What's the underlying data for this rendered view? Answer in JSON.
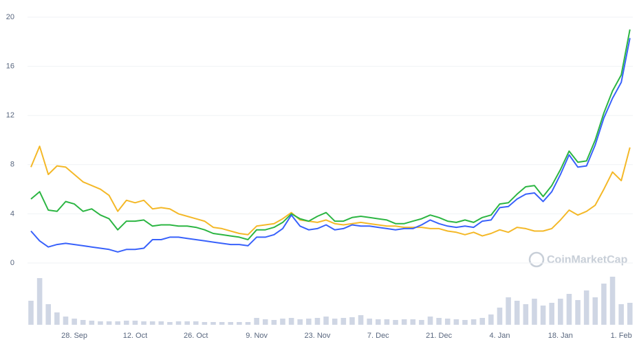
{
  "chart_data": {
    "type": "line",
    "watermark": "CoinMarketCap",
    "categories": [
      null,
      null,
      null,
      null,
      null,
      "28. Sep",
      null,
      null,
      null,
      null,
      null,
      null,
      "12. Oct",
      null,
      null,
      null,
      null,
      null,
      null,
      "26. Oct",
      null,
      null,
      null,
      null,
      null,
      null,
      "9. Nov",
      null,
      null,
      null,
      null,
      null,
      null,
      "23. Nov",
      null,
      null,
      null,
      null,
      null,
      null,
      "7. Dec",
      null,
      null,
      null,
      null,
      null,
      null,
      "21. Dec",
      null,
      null,
      null,
      null,
      null,
      null,
      "4. Jan",
      null,
      null,
      null,
      null,
      null,
      null,
      "18. Jan",
      null,
      null,
      null,
      null,
      null,
      null,
      "1. Feb",
      null
    ],
    "ylim": [
      0,
      20
    ],
    "yticks": [
      0,
      4,
      8,
      12,
      16,
      20
    ],
    "grid": true,
    "series": [
      {
        "color": "#f4b827",
        "values": [
          7.8,
          9.5,
          7.2,
          7.9,
          7.8,
          7.2,
          6.6,
          6.3,
          6.0,
          5.5,
          4.2,
          5.1,
          4.9,
          5.1,
          4.4,
          4.5,
          4.4,
          4.0,
          3.8,
          3.6,
          3.4,
          2.9,
          2.8,
          2.6,
          2.4,
          2.3,
          3.0,
          3.1,
          3.2,
          3.6,
          4.1,
          3.5,
          3.4,
          3.3,
          3.5,
          3.2,
          3.1,
          3.2,
          3.3,
          3.2,
          3.1,
          3.0,
          3.0,
          2.9,
          2.9,
          2.9,
          2.8,
          2.8,
          2.6,
          2.5,
          2.3,
          2.5,
          2.2,
          2.4,
          2.7,
          2.5,
          2.9,
          2.8,
          2.6,
          2.6,
          2.8,
          3.5,
          4.3,
          3.9,
          4.2,
          4.7,
          6.0,
          7.4,
          6.7,
          9.4
        ]
      },
      {
        "color": "#2bb542",
        "values": [
          5.2,
          5.8,
          4.3,
          4.2,
          5.0,
          4.8,
          4.2,
          4.4,
          3.9,
          3.6,
          2.7,
          3.4,
          3.4,
          3.5,
          3.0,
          3.1,
          3.1,
          3.0,
          3.0,
          2.9,
          2.7,
          2.4,
          2.3,
          2.2,
          2.1,
          1.9,
          2.7,
          2.7,
          2.9,
          3.3,
          4.0,
          3.6,
          3.4,
          3.8,
          4.1,
          3.4,
          3.4,
          3.7,
          3.8,
          3.7,
          3.6,
          3.5,
          3.2,
          3.2,
          3.4,
          3.6,
          3.9,
          3.7,
          3.4,
          3.3,
          3.5,
          3.3,
          3.7,
          3.9,
          4.8,
          4.9,
          5.6,
          6.2,
          6.3,
          5.4,
          6.3,
          7.6,
          9.1,
          8.2,
          8.3,
          10.0,
          12.2,
          14.0,
          15.3,
          19.0
        ]
      },
      {
        "color": "#3861fb",
        "values": [
          2.6,
          1.8,
          1.3,
          1.5,
          1.6,
          1.5,
          1.4,
          1.3,
          1.2,
          1.1,
          0.9,
          1.1,
          1.1,
          1.2,
          1.9,
          1.9,
          2.1,
          2.1,
          2.0,
          1.9,
          1.8,
          1.7,
          1.6,
          1.5,
          1.5,
          1.4,
          2.1,
          2.1,
          2.3,
          2.8,
          3.9,
          3.0,
          2.7,
          2.8,
          3.1,
          2.7,
          2.8,
          3.1,
          3.0,
          3.0,
          2.9,
          2.8,
          2.7,
          2.8,
          2.8,
          3.1,
          3.5,
          3.2,
          3.0,
          2.9,
          3.0,
          2.9,
          3.4,
          3.5,
          4.5,
          4.6,
          5.2,
          5.6,
          5.7,
          5.0,
          5.8,
          7.2,
          8.8,
          7.8,
          7.9,
          9.6,
          11.8,
          13.4,
          14.7,
          18.3
        ]
      }
    ],
    "volume": {
      "color": "#cfd6e4",
      "values": [
        35,
        68,
        30,
        18,
        12,
        9,
        7,
        6,
        5,
        5,
        5,
        6,
        6,
        5,
        5,
        5,
        4,
        5,
        5,
        5,
        4,
        4,
        4,
        4,
        4,
        4,
        10,
        8,
        7,
        9,
        10,
        8,
        9,
        10,
        12,
        9,
        10,
        11,
        14,
        9,
        8,
        8,
        7,
        8,
        8,
        7,
        12,
        10,
        9,
        8,
        7,
        8,
        10,
        15,
        25,
        40,
        35,
        30,
        38,
        28,
        32,
        38,
        45,
        36,
        50,
        40,
        60,
        70,
        30,
        32
      ]
    }
  }
}
